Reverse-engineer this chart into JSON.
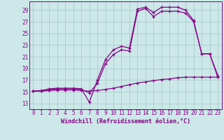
{
  "bg_color": "#cce8e8",
  "grid_color": "#aacccc",
  "line_color": "#880088",
  "axis_color": "#880088",
  "xlabel": "Windchill (Refroidissement éolien,°C)",
  "ylabel_ticks": [
    13,
    15,
    17,
    19,
    21,
    23,
    25,
    27,
    29
  ],
  "xlabel_ticks": [
    0,
    1,
    2,
    3,
    4,
    5,
    6,
    7,
    8,
    9,
    10,
    11,
    12,
    13,
    14,
    15,
    16,
    17,
    18,
    19,
    20,
    21,
    22,
    23
  ],
  "xlim": [
    -0.5,
    23.5
  ],
  "ylim": [
    12.0,
    30.5
  ],
  "line1_x": [
    0,
    1,
    2,
    3,
    4,
    5,
    6,
    7,
    8,
    9,
    10,
    11,
    12,
    13,
    14,
    15,
    16,
    17,
    18,
    19,
    20,
    21,
    22,
    23
  ],
  "line1_y": [
    15.1,
    15.2,
    15.5,
    15.6,
    15.6,
    15.6,
    15.5,
    13.2,
    17.0,
    20.5,
    22.2,
    22.8,
    22.5,
    29.2,
    29.5,
    28.6,
    29.5,
    29.5,
    29.5,
    29.0,
    27.2,
    21.5,
    21.5,
    17.8
  ],
  "line2_x": [
    0,
    1,
    2,
    3,
    4,
    5,
    6,
    7,
    8,
    9,
    10,
    11,
    12,
    13,
    14,
    15,
    16,
    17,
    18,
    19,
    20,
    21,
    22,
    23
  ],
  "line2_y": [
    15.1,
    15.1,
    15.3,
    15.5,
    15.5,
    15.5,
    15.4,
    14.8,
    16.4,
    19.8,
    21.4,
    22.2,
    22.0,
    28.8,
    29.3,
    27.9,
    28.8,
    28.8,
    28.8,
    28.5,
    27.0,
    21.5,
    21.5,
    17.5
  ],
  "line3_x": [
    0,
    1,
    2,
    3,
    4,
    5,
    6,
    7,
    8,
    9,
    10,
    11,
    12,
    13,
    14,
    15,
    16,
    17,
    18,
    19,
    20,
    21,
    22,
    23
  ],
  "line3_y": [
    15.1,
    15.1,
    15.2,
    15.3,
    15.3,
    15.3,
    15.2,
    15.1,
    15.2,
    15.4,
    15.6,
    15.9,
    16.2,
    16.5,
    16.7,
    16.9,
    17.1,
    17.2,
    17.4,
    17.5,
    17.5,
    17.5,
    17.5,
    17.5
  ],
  "marker": "+",
  "markersize": 3.5,
  "linewidth": 0.9,
  "tick_fontsize": 5.5,
  "xlabel_fontsize": 6.0
}
